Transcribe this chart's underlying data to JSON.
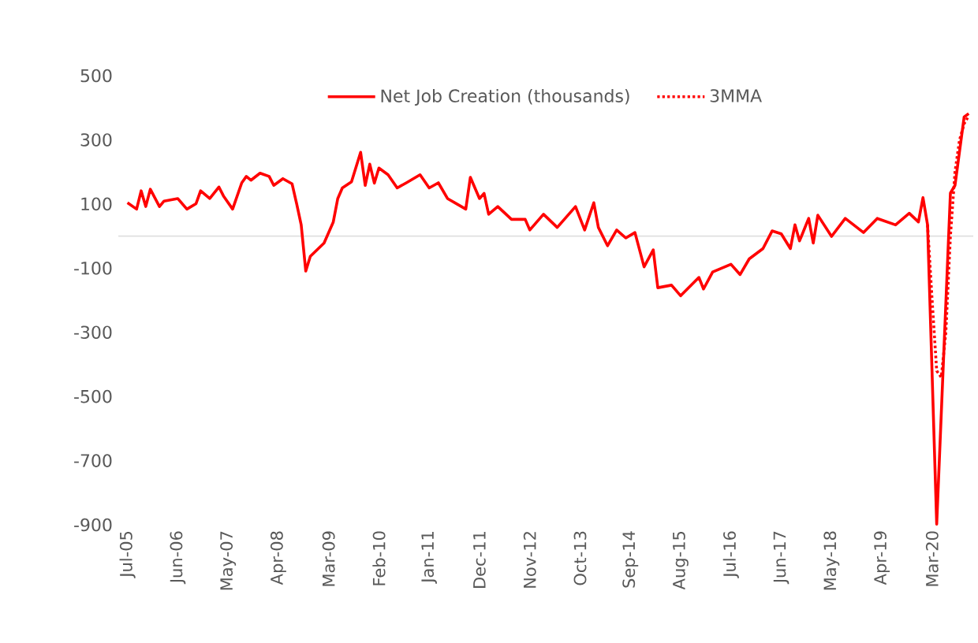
{
  "chart_data": {
    "type": "line",
    "legend": "top",
    "grid": false,
    "marker": "none",
    "xlim": [
      "2005-05",
      "2020-12"
    ],
    "ylim": [
      -900,
      500
    ],
    "yticks": [
      500,
      300,
      100,
      -100,
      -300,
      -500,
      -700,
      -900
    ],
    "xticks": [
      {
        "value": "2005-07",
        "label": "Jul-05"
      },
      {
        "value": "2006-06",
        "label": "Jun-06"
      },
      {
        "value": "2007-05",
        "label": "May-07"
      },
      {
        "value": "2008-04",
        "label": "Apr-08"
      },
      {
        "value": "2009-03",
        "label": "Mar-09"
      },
      {
        "value": "2010-02",
        "label": "Feb-10"
      },
      {
        "value": "2011-01",
        "label": "Jan-11"
      },
      {
        "value": "2011-12",
        "label": "Dec-11"
      },
      {
        "value": "2012-11",
        "label": "Nov-12"
      },
      {
        "value": "2013-10",
        "label": "Oct-13"
      },
      {
        "value": "2014-09",
        "label": "Sep-14"
      },
      {
        "value": "2015-08",
        "label": "Aug-15"
      },
      {
        "value": "2016-07",
        "label": "Jul-16"
      },
      {
        "value": "2017-06",
        "label": "Jun-17"
      },
      {
        "value": "2018-05",
        "label": "May-18"
      },
      {
        "value": "2019-04",
        "label": "Apr-19"
      },
      {
        "value": "2020-03",
        "label": "Mar-20"
      }
    ],
    "series": [
      {
        "name": "Net Job Creation (thousands)",
        "color": "#ff0000",
        "line_style": "solid",
        "x": [
          "2005-07",
          "2005-09",
          "2005-10",
          "2005-11",
          "2005-12",
          "2006-02",
          "2006-03",
          "2006-06",
          "2006-08",
          "2006-10",
          "2006-11",
          "2007-01",
          "2007-03",
          "2007-04",
          "2007-06",
          "2007-08",
          "2007-09",
          "2007-10",
          "2007-12",
          "2008-02",
          "2008-03",
          "2008-05",
          "2008-07",
          "2008-08",
          "2008-09",
          "2008-10",
          "2008-11",
          "2009-02",
          "2009-04",
          "2009-05",
          "2009-06",
          "2009-08",
          "2009-10",
          "2009-11",
          "2009-12",
          "2010-01",
          "2010-02",
          "2010-04",
          "2010-06",
          "2010-08",
          "2010-11",
          "2011-01",
          "2011-03",
          "2011-05",
          "2011-09",
          "2011-10",
          "2011-12",
          "2012-01",
          "2012-02",
          "2012-04",
          "2012-07",
          "2012-10",
          "2012-11",
          "2013-02",
          "2013-05",
          "2013-09",
          "2013-11",
          "2014-01",
          "2014-02",
          "2014-04",
          "2014-06",
          "2014-08",
          "2014-10",
          "2014-12",
          "2015-02",
          "2015-03",
          "2015-06",
          "2015-08",
          "2015-12",
          "2016-01",
          "2016-03",
          "2016-07",
          "2016-09",
          "2016-11",
          "2017-02",
          "2017-04",
          "2017-06",
          "2017-08",
          "2017-09",
          "2017-10",
          "2017-12",
          "2018-01",
          "2018-02",
          "2018-05",
          "2018-08",
          "2018-12",
          "2019-03",
          "2019-07",
          "2019-10",
          "2019-12",
          "2020-01",
          "2020-02",
          "2020-04",
          "2020-07",
          "2020-08",
          "2020-10",
          "2020-11"
        ],
        "values": [
          104,
          84,
          141,
          92,
          146,
          92,
          109,
          117,
          84,
          101,
          141,
          117,
          153,
          125,
          84,
          166,
          186,
          174,
          196,
          186,
          158,
          179,
          163,
          101,
          35,
          -109,
          -63,
          -22,
          43,
          117,
          150,
          169,
          261,
          158,
          224,
          165,
          212,
          191,
          150,
          166,
          191,
          150,
          166,
          117,
          84,
          183,
          117,
          133,
          68,
          92,
          52,
          52,
          19,
          68,
          27,
          92,
          19,
          104,
          27,
          -30,
          19,
          -6,
          11,
          -96,
          -43,
          -161,
          -153,
          -186,
          -129,
          -165,
          -112,
          -88,
          -120,
          -71,
          -39,
          16,
          7,
          -39,
          35,
          -15,
          55,
          -22,
          65,
          -1,
          55,
          11,
          55,
          35,
          71,
          44,
          120,
          35,
          -898,
          134,
          158,
          371,
          382
        ]
      },
      {
        "name": "3MMA",
        "color": "#ff0000",
        "line_style": "dotted",
        "x": [
          "2020-02",
          "2020-03",
          "2020-04",
          "2020-05",
          "2020-06",
          "2020-07",
          "2020-08",
          "2020-09",
          "2020-10",
          "2020-11"
        ],
        "values": [
          35,
          -200,
          -420,
          -440,
          -300,
          0,
          200,
          300,
          350,
          375
        ]
      }
    ]
  }
}
